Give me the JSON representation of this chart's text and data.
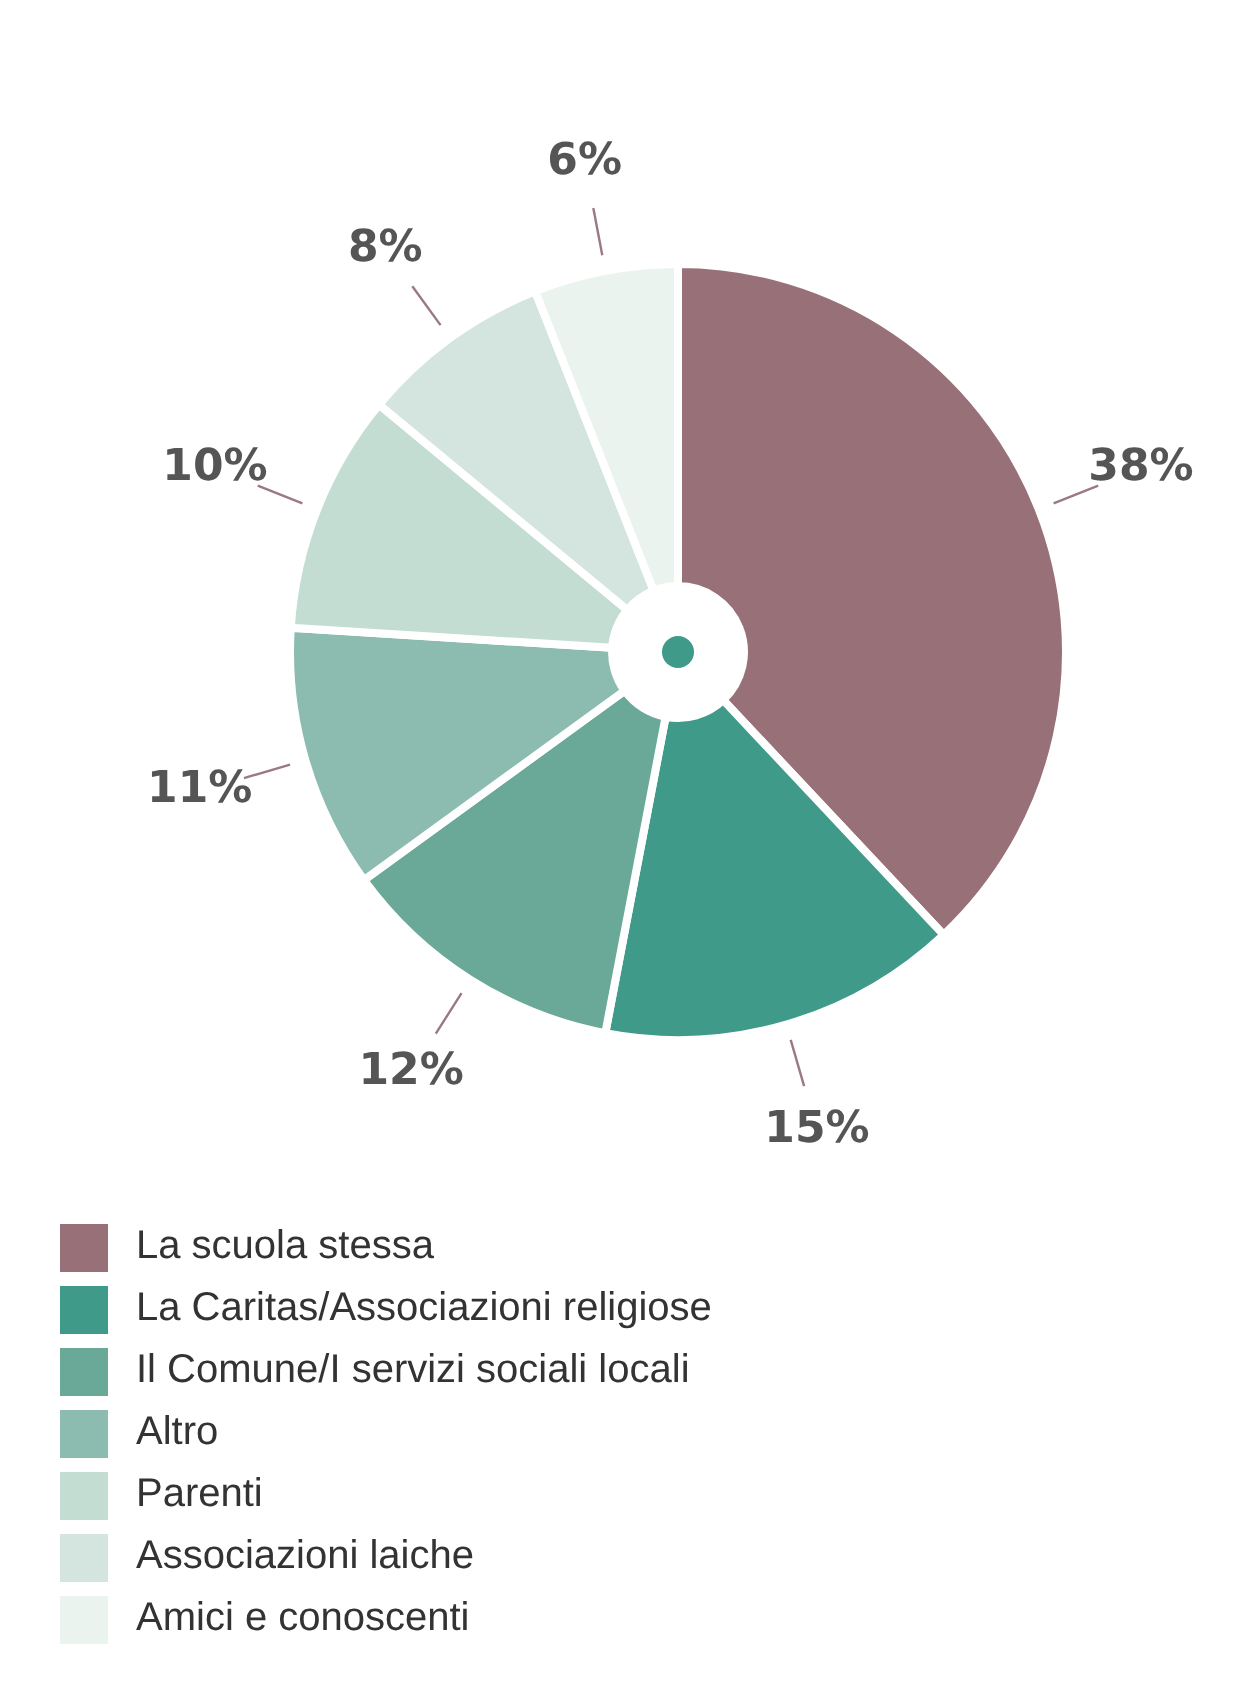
{
  "chart_data": {
    "type": "donut",
    "categories": [
      "La scuola stessa",
      "La Caritas/Associazioni religiose",
      "Il Comune/I servizi sociali locali",
      "Altro",
      "Parenti",
      "Associazioni laiche",
      "Amici e conoscenti"
    ],
    "values": [
      38,
      15,
      12,
      11,
      10,
      8,
      6
    ],
    "colors": [
      "#987078",
      "#3f9a8a",
      "#6aa898",
      "#8cbcb0",
      "#c3ddd3",
      "#d4e5df",
      "#ebf3ef"
    ],
    "value_labels": [
      "38%",
      "15%",
      "12%",
      "11%",
      "10%",
      "8%",
      "6%"
    ],
    "legend": "bottom"
  }
}
